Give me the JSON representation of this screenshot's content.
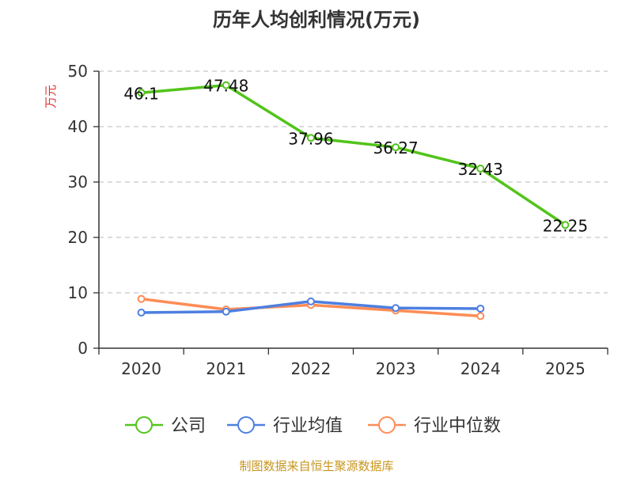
{
  "chart_data": {
    "type": "line",
    "title": "历年人均创利情况(万元)",
    "ylabel": "万元",
    "xlabel": "",
    "categories": [
      "2020",
      "2021",
      "2022",
      "2023",
      "2024",
      "2025"
    ],
    "ylim": [
      0,
      50
    ],
    "yticks": [
      0,
      10,
      20,
      30,
      40,
      50
    ],
    "grid": true,
    "legend_position": "bottom",
    "series": [
      {
        "name": "公司",
        "color": "#52c41a",
        "values": [
          46.1,
          47.48,
          37.96,
          36.27,
          32.43,
          22.25
        ],
        "labels": [
          "46.1",
          "47.48",
          "37.96",
          "36.27",
          "32.43",
          "22.25"
        ]
      },
      {
        "name": "行业均值",
        "color": "#4e7fe0",
        "values": [
          6.43,
          6.6,
          8.45,
          7.25,
          7.15,
          null
        ]
      },
      {
        "name": "行业中位数",
        "color": "#ff8c55",
        "values": [
          8.9,
          7.0,
          7.8,
          6.8,
          5.8,
          null
        ]
      }
    ]
  },
  "footer": "制图数据来自恒生聚源数据库"
}
